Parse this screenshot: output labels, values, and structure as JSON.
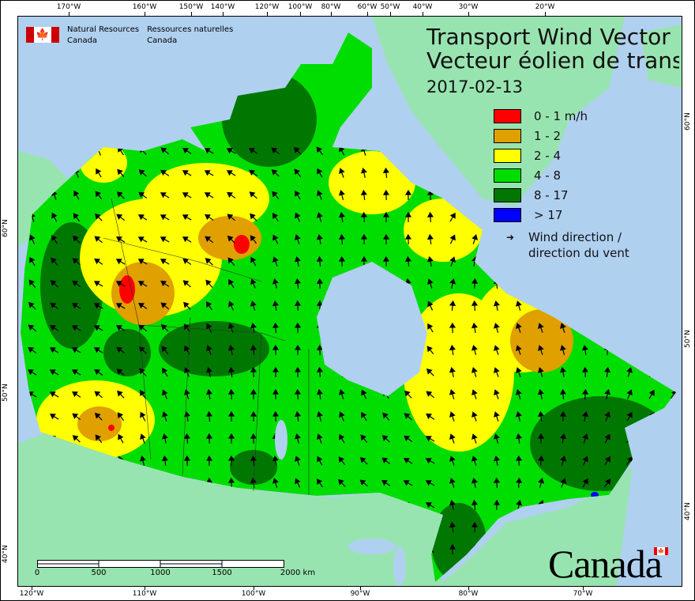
{
  "header": {
    "agency_en": [
      "Natural Resources",
      "Canada"
    ],
    "agency_fr": [
      "Ressources naturelles",
      "Canada"
    ]
  },
  "title": {
    "line1": "Transport Wind Vector",
    "line2": "Vecteur éolien de transp",
    "date": "2017-02-13"
  },
  "legend": {
    "classes": [
      {
        "label": "0 - 1 m/h",
        "color": "#ff0000"
      },
      {
        "label": "1 - 2",
        "color": "#e0a000"
      },
      {
        "label": "2 - 4",
        "color": "#ffff00"
      },
      {
        "label": "4 - 8",
        "color": "#00dd00"
      },
      {
        "label": "8 - 17",
        "color": "#007700"
      },
      {
        "label": "> 17",
        "color": "#0000ff"
      }
    ],
    "wind_label_1": "Wind direction /",
    "wind_label_2": "direction du vent"
  },
  "axes": {
    "top": [
      "170°W",
      "160°W",
      "150°W",
      "140°W",
      "120°W",
      "100°W",
      "80°W",
      "60°W",
      "50°W",
      "40°W",
      "30°W",
      "20°W"
    ],
    "bottom": [
      "120°W",
      "110°W",
      "100°W",
      "90°W",
      "80°W",
      "70°W"
    ],
    "left": [
      "60°N",
      "50°N",
      "40°N"
    ],
    "right": [
      "60°N",
      "50°N",
      "40°N"
    ]
  },
  "scale_bar": {
    "labels": [
      "0",
      "500",
      "1000",
      "1500",
      "2000 km"
    ]
  },
  "wordmark": "Canada",
  "colors": {
    "ocean": "#b0d0f0",
    "foreign_land": "#98e4b0",
    "frame": "#000000"
  }
}
